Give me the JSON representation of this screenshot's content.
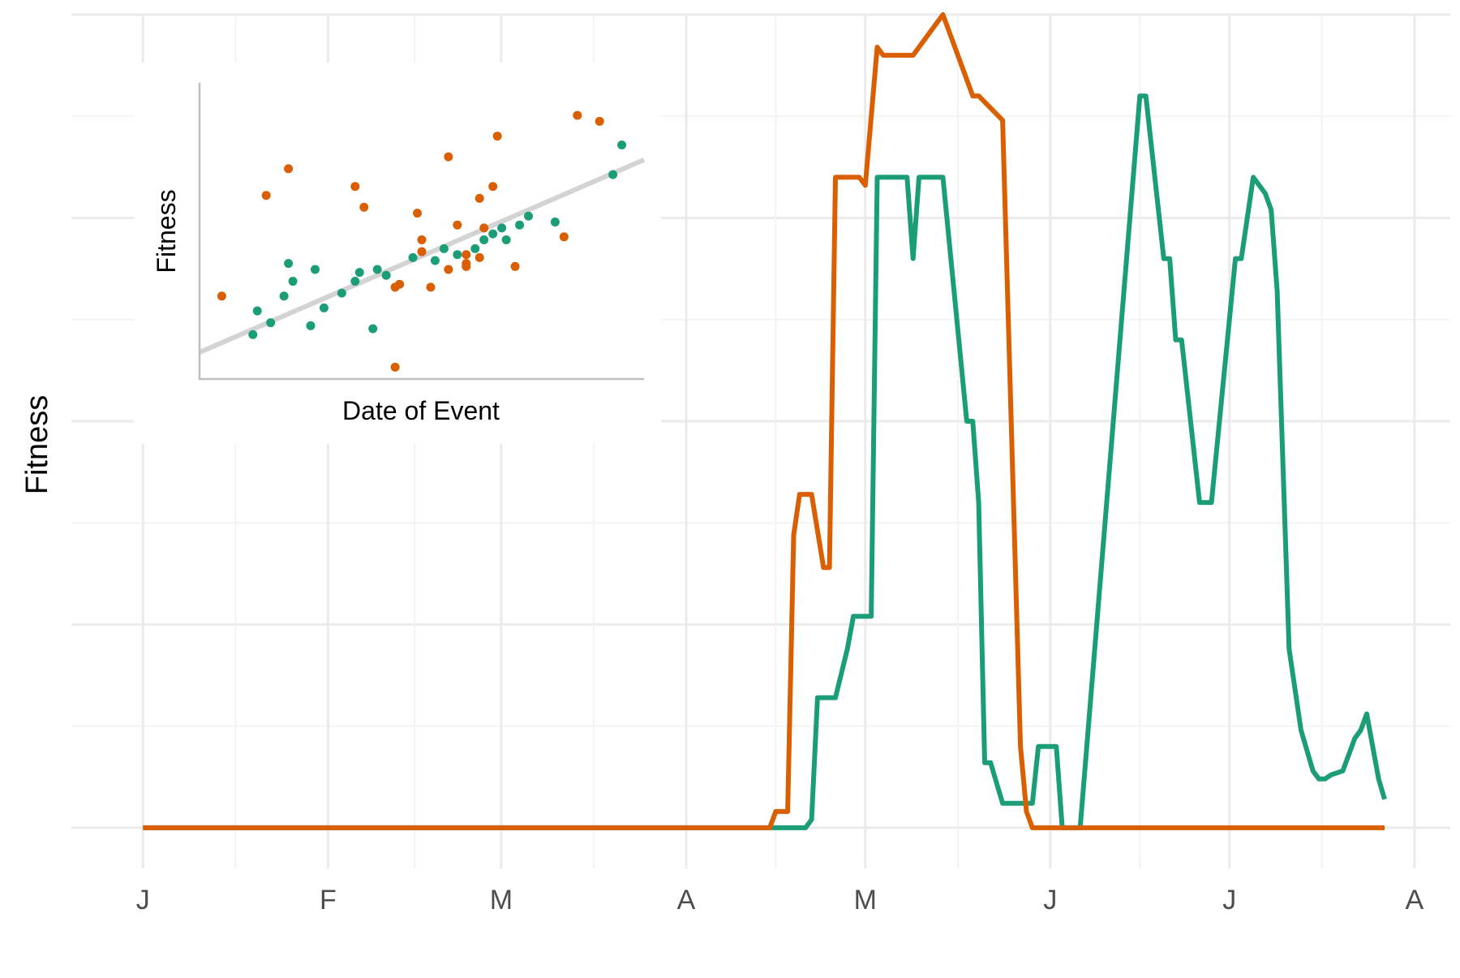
{
  "colors": {
    "orange": "#d95f02",
    "green": "#1b9e77",
    "grid_major": "#ebebeb",
    "grid_minor": "#f3f3f3",
    "tick_text": "#4d4d4d",
    "title_text": "#000000",
    "fit_line": "#d3d3d3",
    "inset_axis": "#bebebe"
  },
  "chart_data": [
    {
      "type": "line",
      "xlabel": "",
      "ylabel": "Fitness",
      "x_tick_labels": [
        "J",
        "F",
        "M",
        "A",
        "M",
        "J",
        "J",
        "A"
      ],
      "x_ticks": [
        "2020-01-01",
        "2020-02-01",
        "2020-03-01",
        "2020-04-01",
        "2020-05-01",
        "2020-06-01",
        "2020-07-01",
        "2020-08-01"
      ],
      "xlim": [
        "2019-12-20",
        "2020-08-07"
      ],
      "ylim": [
        -0.05,
        1.0
      ],
      "y_tick_labels_shown": false,
      "grid": true,
      "series": [
        {
          "color": "#1b9e77",
          "points": [
            [
              "2020-01-01",
              0
            ],
            [
              "2020-04-15",
              0
            ],
            [
              "2020-04-21",
              0
            ],
            [
              "2020-04-22",
              0.01
            ],
            [
              "2020-04-23",
              0.16
            ],
            [
              "2020-04-26",
              0.16
            ],
            [
              "2020-04-28",
              0.22
            ],
            [
              "2020-04-29",
              0.26
            ],
            [
              "2020-05-02",
              0.26
            ],
            [
              "2020-05-03",
              0.8
            ],
            [
              "2020-05-08",
              0.8
            ],
            [
              "2020-05-09",
              0.7
            ],
            [
              "2020-05-10",
              0.8
            ],
            [
              "2020-05-14",
              0.8
            ],
            [
              "2020-05-18",
              0.5
            ],
            [
              "2020-05-19",
              0.5
            ],
            [
              "2020-05-20",
              0.4
            ],
            [
              "2020-05-21",
              0.08
            ],
            [
              "2020-05-22",
              0.08
            ],
            [
              "2020-05-24",
              0.03
            ],
            [
              "2020-05-29",
              0.03
            ],
            [
              "2020-05-30",
              0.1
            ],
            [
              "2020-06-02",
              0.1
            ],
            [
              "2020-06-03",
              0.0
            ],
            [
              "2020-06-06",
              0.0
            ],
            [
              "2020-06-16",
              0.9
            ],
            [
              "2020-06-17",
              0.9
            ],
            [
              "2020-06-20",
              0.7
            ],
            [
              "2020-06-21",
              0.7
            ],
            [
              "2020-06-22",
              0.6
            ],
            [
              "2020-06-23",
              0.6
            ],
            [
              "2020-06-26",
              0.4
            ],
            [
              "2020-06-28",
              0.4
            ],
            [
              "2020-07-02",
              0.7
            ],
            [
              "2020-07-03",
              0.7
            ],
            [
              "2020-07-05",
              0.8
            ],
            [
              "2020-07-07",
              0.78
            ],
            [
              "2020-07-08",
              0.76
            ],
            [
              "2020-07-09",
              0.66
            ],
            [
              "2020-07-11",
              0.22
            ],
            [
              "2020-07-13",
              0.12
            ],
            [
              "2020-07-15",
              0.07
            ],
            [
              "2020-07-16",
              0.06
            ],
            [
              "2020-07-17",
              0.06
            ],
            [
              "2020-07-18",
              0.065
            ],
            [
              "2020-07-20",
              0.07
            ],
            [
              "2020-07-22",
              0.11
            ],
            [
              "2020-07-23",
              0.12
            ],
            [
              "2020-07-24",
              0.14
            ],
            [
              "2020-07-26",
              0.06
            ],
            [
              "2020-07-27",
              0.035
            ]
          ]
        },
        {
          "color": "#d95f02",
          "points": [
            [
              "2020-01-01",
              0
            ],
            [
              "2020-04-15",
              0
            ],
            [
              "2020-04-16",
              0.02
            ],
            [
              "2020-04-18",
              0.02
            ],
            [
              "2020-04-19",
              0.36
            ],
            [
              "2020-04-20",
              0.41
            ],
            [
              "2020-04-22",
              0.41
            ],
            [
              "2020-04-24",
              0.32
            ],
            [
              "2020-04-25",
              0.32
            ],
            [
              "2020-04-26",
              0.8
            ],
            [
              "2020-04-30",
              0.8
            ],
            [
              "2020-05-01",
              0.79
            ],
            [
              "2020-05-03",
              0.96
            ],
            [
              "2020-05-04",
              0.95
            ],
            [
              "2020-05-09",
              0.95
            ],
            [
              "2020-05-14",
              1.0
            ],
            [
              "2020-05-19",
              0.9
            ],
            [
              "2020-05-20",
              0.9
            ],
            [
              "2020-05-24",
              0.87
            ],
            [
              "2020-05-27",
              0.1
            ],
            [
              "2020-05-28",
              0.02
            ],
            [
              "2020-05-29",
              0.0
            ],
            [
              "2020-07-27",
              0.0
            ]
          ]
        }
      ]
    },
    {
      "type": "scatter",
      "xlabel": "Date of Event",
      "ylabel": "Fitness",
      "xlim": [
        0,
        100
      ],
      "ylim": [
        0,
        100
      ],
      "ticks_shown": false,
      "trend_line": {
        "x": [
          0,
          100
        ],
        "y": [
          9,
          74
        ]
      },
      "series": [
        {
          "color": "#1b9e77",
          "x": [
            13,
            16,
            12,
            19,
            21,
            20,
            25,
            26,
            28,
            32,
            36,
            35,
            40,
            39,
            42,
            48,
            55,
            53,
            58,
            62,
            64,
            66,
            68,
            69,
            72,
            74,
            80,
            93,
            95
          ],
          "y": [
            23,
            19,
            15,
            28,
            33,
            39,
            18,
            37,
            24,
            29,
            36,
            33,
            37,
            17,
            35,
            41,
            44,
            40,
            42,
            44,
            47,
            49,
            51,
            47,
            52,
            55,
            53,
            69,
            79
          ]
        },
        {
          "color": "#d95f02",
          "x": [
            5,
            15,
            20,
            44,
            35,
            37,
            45,
            50,
            60,
            49,
            52,
            50,
            56,
            58,
            64,
            56,
            60,
            63,
            60,
            66,
            67,
            71,
            82,
            90,
            85,
            44,
            63
          ],
          "y": [
            28,
            62,
            71,
            4,
            65,
            58,
            32,
            47,
            42,
            56,
            31,
            43,
            75,
            52,
            51,
            37,
            38,
            61,
            39,
            65,
            82,
            38,
            48,
            87,
            89,
            31,
            41
          ]
        }
      ]
    }
  ]
}
